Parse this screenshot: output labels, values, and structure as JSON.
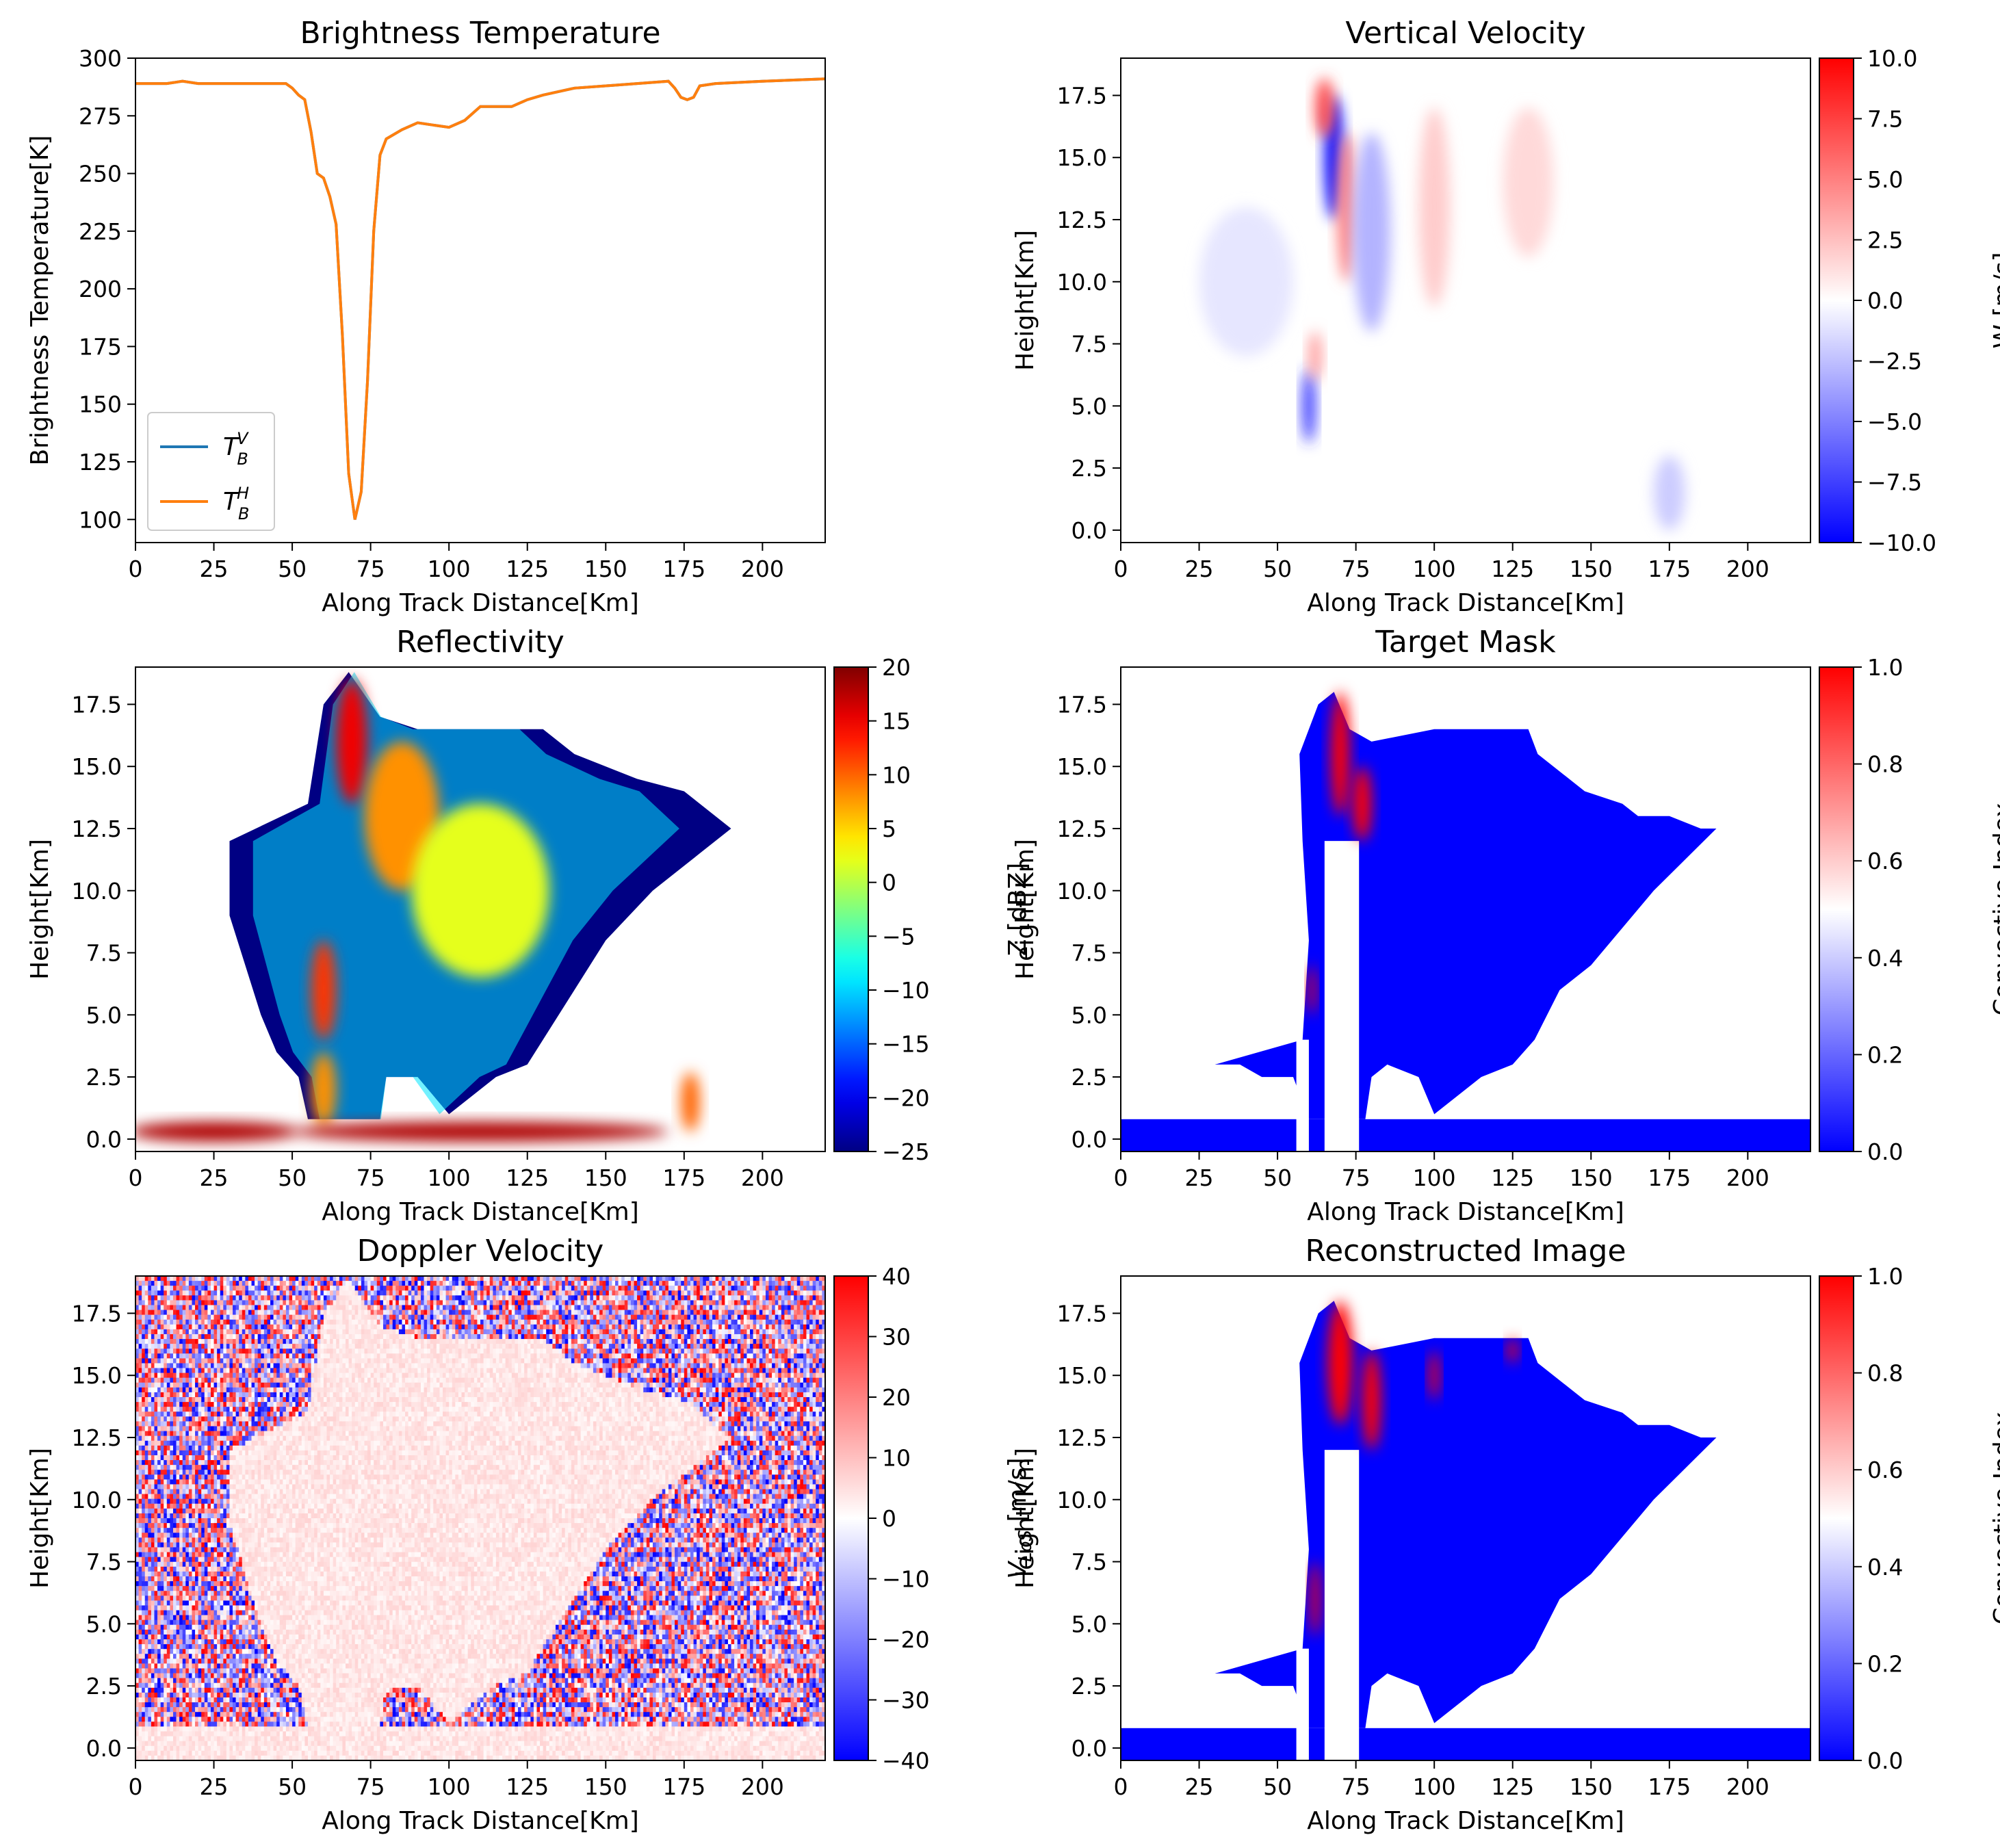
{
  "charts": [
    {
      "type": "line",
      "title": "Brightness Temperature",
      "xlabel": "Along Track Distance[Km]",
      "ylabel": "Brightness Temperature[K]",
      "xlim": [
        0,
        220
      ],
      "ylim": [
        90,
        300
      ],
      "xticks": [
        0,
        25,
        50,
        75,
        100,
        125,
        150,
        175,
        200
      ],
      "yticks": [
        100,
        125,
        150,
        175,
        200,
        225,
        250,
        275,
        300
      ],
      "legend": {
        "placement": "lower-left",
        "entries": [
          {
            "tex": "V",
            "color": "#1f77b4"
          },
          {
            "tex": "H",
            "color": "#ff7f0e"
          }
        ]
      },
      "series": [
        {
          "color": "#1f77b4",
          "x": [
            0,
            10,
            15,
            20,
            30,
            40,
            48,
            50,
            52,
            54,
            56,
            58,
            60,
            62,
            64,
            66,
            68,
            70,
            72,
            74,
            76,
            78,
            80,
            85,
            90,
            95,
            100,
            105,
            110,
            115,
            120,
            125,
            130,
            140,
            150,
            160,
            170,
            172,
            174,
            176,
            178,
            180,
            185,
            200,
            220
          ],
          "y": [
            289,
            289,
            290,
            289,
            289,
            289,
            289,
            287,
            284,
            282,
            268,
            250,
            248,
            240,
            228,
            180,
            120,
            100,
            112,
            160,
            225,
            258,
            265,
            269,
            272,
            271,
            270,
            273,
            279,
            279,
            279,
            282,
            284,
            287,
            288,
            289,
            290,
            287,
            283,
            282,
            283,
            288,
            289,
            290,
            291
          ]
        },
        {
          "color": "#ff7f0e",
          "x": [
            0,
            10,
            15,
            20,
            30,
            40,
            48,
            50,
            52,
            54,
            56,
            58,
            60,
            62,
            64,
            66,
            68,
            70,
            72,
            74,
            76,
            78,
            80,
            85,
            90,
            95,
            100,
            105,
            110,
            115,
            120,
            125,
            130,
            140,
            150,
            160,
            170,
            172,
            174,
            176,
            178,
            180,
            185,
            200,
            220
          ],
          "y": [
            289,
            289,
            290,
            289,
            289,
            289,
            289,
            287,
            284,
            282,
            268,
            250,
            248,
            240,
            228,
            180,
            120,
            100,
            112,
            160,
            225,
            258,
            265,
            269,
            272,
            271,
            270,
            273,
            279,
            279,
            279,
            282,
            284,
            287,
            288,
            289,
            290,
            287,
            283,
            282,
            283,
            288,
            289,
            290,
            291
          ]
        }
      ]
    },
    {
      "type": "heatmap",
      "title": "Vertical Velocity",
      "xlabel": "Along Track Distance[Km]",
      "ylabel": "Height[Km]",
      "colorbar_label": "W [m/s]",
      "colormap": "bwr",
      "xlim": [
        0,
        220
      ],
      "ylim": [
        -0.5,
        19
      ],
      "clim": [
        -10,
        10
      ],
      "xticks": [
        0,
        25,
        50,
        75,
        100,
        125,
        150,
        175,
        200
      ],
      "yticks": [
        0.0,
        2.5,
        5.0,
        7.5,
        10.0,
        12.5,
        15.0,
        17.5
      ],
      "cticks": [
        -10.0,
        -7.5,
        -5.0,
        -2.5,
        0.0,
        2.5,
        5.0,
        7.5,
        10.0
      ],
      "cticklabels": [
        "−10.0",
        "−7.5",
        "−5.0",
        "−2.5",
        "0.0",
        "2.5",
        "5.0",
        "7.5",
        "10.0"
      ],
      "features": [
        {
          "x": 68,
          "y": 15.0,
          "rx": 3,
          "ry": 2.5,
          "v": -10
        },
        {
          "x": 65,
          "y": 17.0,
          "rx": 3,
          "ry": 1.2,
          "v": 7
        },
        {
          "x": 72,
          "y": 13.0,
          "rx": 3,
          "ry": 3,
          "v": 5
        },
        {
          "x": 60,
          "y": 5.0,
          "rx": 2,
          "ry": 1.5,
          "v": -8
        },
        {
          "x": 62,
          "y": 7.0,
          "rx": 2,
          "ry": 1.0,
          "v": 4
        },
        {
          "x": 80,
          "y": 12.0,
          "rx": 6,
          "ry": 4,
          "v": -3
        },
        {
          "x": 100,
          "y": 13.0,
          "rx": 5,
          "ry": 4,
          "v": 2
        },
        {
          "x": 130,
          "y": 14.0,
          "rx": 8,
          "ry": 3,
          "v": 1.5
        },
        {
          "x": 40,
          "y": 10.0,
          "rx": 15,
          "ry": 3,
          "v": -1
        },
        {
          "x": 175,
          "y": 1.5,
          "rx": 5,
          "ry": 1.5,
          "v": -2
        }
      ]
    },
    {
      "type": "heatmap",
      "title": "Reflectivity",
      "xlabel": "Along Track Distance[Km]",
      "ylabel": "Height[Km]",
      "colorbar_label": "Z [dBZ]",
      "colormap": "jet",
      "xlim": [
        0,
        220
      ],
      "ylim": [
        -0.5,
        19
      ],
      "clim": [
        -25,
        20
      ],
      "xticks": [
        0,
        25,
        50,
        75,
        100,
        125,
        150,
        175,
        200
      ],
      "yticks": [
        0.0,
        2.5,
        5.0,
        7.5,
        10.0,
        12.5,
        15.0,
        17.5
      ],
      "cticks": [
        -25,
        -20,
        -15,
        -10,
        -5,
        0,
        5,
        10,
        15,
        20
      ],
      "cticklabels": [
        "−25",
        "−20",
        "−15",
        "−10",
        "−5",
        "0",
        "5",
        "10",
        "15",
        "20"
      ],
      "features": [
        {
          "x": 69,
          "y": 16.0,
          "rx": 5,
          "ry": 2.5,
          "v": 15
        },
        {
          "x": 85,
          "y": 13.0,
          "rx": 12,
          "ry": 3,
          "v": 8
        },
        {
          "x": 110,
          "y": 10.0,
          "rx": 22,
          "ry": 3.5,
          "v": 2
        },
        {
          "x": 60,
          "y": 6.0,
          "rx": 4,
          "ry": 2.0,
          "v": 12
        },
        {
          "x": 60,
          "y": 2.0,
          "rx": 4,
          "ry": 1.5,
          "v": 8
        },
        {
          "x": 177,
          "y": 1.5,
          "rx": 3,
          "ry": 1.2,
          "v": 10
        },
        {
          "x": 110,
          "y": 0.3,
          "rx": 60,
          "ry": 0.4,
          "v": 18
        },
        {
          "x": 25,
          "y": 0.3,
          "rx": 27,
          "ry": 0.4,
          "v": 18
        }
      ]
    },
    {
      "type": "heatmap",
      "title": "Target Mask",
      "xlabel": "Along Track Distance[Km]",
      "ylabel": "Height[Km]",
      "colorbar_label": "Convective Index",
      "colormap": "bwr",
      "xlim": [
        0,
        220
      ],
      "ylim": [
        -0.5,
        19
      ],
      "clim": [
        0,
        1
      ],
      "xticks": [
        0,
        25,
        50,
        75,
        100,
        125,
        150,
        175,
        200
      ],
      "yticks": [
        0.0,
        2.5,
        5.0,
        7.5,
        10.0,
        12.5,
        15.0,
        17.5
      ],
      "cticks": [
        0.0,
        0.2,
        0.4,
        0.6,
        0.8,
        1.0
      ],
      "cticklabels": [
        "0.0",
        "0.2",
        "0.4",
        "0.6",
        "0.8",
        "1.0"
      ],
      "features": [
        {
          "x": 70,
          "y": 15.5,
          "rx": 3,
          "ry": 2.5,
          "v": 1
        },
        {
          "x": 77,
          "y": 13.5,
          "rx": 3,
          "ry": 1.5,
          "v": 1
        },
        {
          "x": 61,
          "y": 6.0,
          "rx": 1.2,
          "ry": 1.0,
          "v": 1
        }
      ]
    },
    {
      "type": "heatmap",
      "title": "Doppler Velocity",
      "xlabel": "Along Track Distance[Km]",
      "ylabel": "V",
      "ylabel_sub": "LoS",
      "ylabel_unit": " [m/s]",
      "colorbar_label": "",
      "colormap": "bwr",
      "xlim": [
        0,
        220
      ],
      "ylim": [
        -0.5,
        19
      ],
      "clim": [
        -40,
        40
      ],
      "xticks": [
        0,
        25,
        50,
        75,
        100,
        125,
        150,
        175,
        200
      ],
      "yticks": [
        0.0,
        2.5,
        5.0,
        7.5,
        10.0,
        12.5,
        15.0,
        17.5
      ],
      "cticks": [
        -40,
        -30,
        -20,
        -10,
        0,
        10,
        20,
        30,
        40
      ],
      "cticklabels": [
        "−40",
        "−30",
        "−20",
        "−10",
        "0",
        "10",
        "20",
        "30",
        "40"
      ],
      "features": []
    },
    {
      "type": "heatmap",
      "title": "Reconstructed Image",
      "xlabel": "Along Track Distance[Km]",
      "ylabel": "Height[Km]",
      "colorbar_label": "Convective Index",
      "colormap": "bwr",
      "xlim": [
        0,
        220
      ],
      "ylim": [
        -0.5,
        19
      ],
      "clim": [
        0,
        1
      ],
      "xticks": [
        0,
        25,
        50,
        75,
        100,
        125,
        150,
        175,
        200
      ],
      "yticks": [
        0.0,
        2.5,
        5.0,
        7.5,
        10.0,
        12.5,
        15.0,
        17.5
      ],
      "cticks": [
        0.0,
        0.2,
        0.4,
        0.6,
        0.8,
        1.0
      ],
      "cticklabels": [
        "0.0",
        "0.2",
        "0.4",
        "0.6",
        "0.8",
        "1.0"
      ],
      "features": [
        {
          "x": 70,
          "y": 15.5,
          "rx": 4,
          "ry": 2.5,
          "v": 1
        },
        {
          "x": 80,
          "y": 14.0,
          "rx": 3,
          "ry": 2.0,
          "v": 1
        },
        {
          "x": 100,
          "y": 15.0,
          "rx": 1.5,
          "ry": 1.0,
          "v": 1
        },
        {
          "x": 125,
          "y": 16.0,
          "rx": 1.5,
          "ry": 0.5,
          "v": 1
        },
        {
          "x": 62,
          "y": 6.0,
          "rx": 1.5,
          "ry": 1.5,
          "v": 1
        }
      ]
    }
  ],
  "storm_shape": {
    "cloud": [
      [
        30,
        12
      ],
      [
        55,
        13.5
      ],
      [
        60,
        17.5
      ],
      [
        68,
        18.8
      ],
      [
        78,
        17
      ],
      [
        90,
        16.5
      ],
      [
        110,
        16.5
      ],
      [
        130,
        16.5
      ],
      [
        140,
        15.5
      ],
      [
        160,
        14.5
      ],
      [
        175,
        14
      ],
      [
        190,
        12.5
      ],
      [
        180,
        11.5
      ],
      [
        165,
        10
      ],
      [
        150,
        8
      ],
      [
        140,
        6
      ],
      [
        125,
        3
      ],
      [
        115,
        2.5
      ],
      [
        100,
        1
      ],
      [
        90,
        2.5
      ],
      [
        80,
        2.5
      ],
      [
        78,
        0.8
      ],
      [
        55,
        0.8
      ],
      [
        52,
        2.5
      ],
      [
        45,
        3.5
      ],
      [
        40,
        5
      ],
      [
        30,
        9
      ]
    ],
    "mask_outline": [
      [
        58,
        4
      ],
      [
        60,
        8
      ],
      [
        58,
        12
      ],
      [
        57,
        15.5
      ],
      [
        63,
        17.5
      ],
      [
        68,
        18
      ],
      [
        73,
        16.5
      ],
      [
        80,
        16
      ],
      [
        100,
        16.5
      ],
      [
        130,
        16.5
      ],
      [
        133,
        15.5
      ],
      [
        148,
        14.0
      ],
      [
        160,
        13.5
      ],
      [
        165,
        13
      ],
      [
        175,
        13
      ],
      [
        185,
        12.5
      ],
      [
        190,
        12.5
      ],
      [
        182,
        11.5
      ],
      [
        170,
        10
      ],
      [
        160,
        8.5
      ],
      [
        150,
        7
      ],
      [
        140,
        6
      ],
      [
        132,
        4
      ],
      [
        125,
        3
      ],
      [
        115,
        2.5
      ],
      [
        105,
        1.5
      ],
      [
        100,
        1
      ],
      [
        95,
        2.5
      ],
      [
        85,
        3.0
      ],
      [
        80,
        2.5
      ],
      [
        78,
        0.8
      ],
      [
        60,
        0.8
      ],
      [
        55,
        2.5
      ],
      [
        45,
        2.5
      ],
      [
        38,
        3
      ],
      [
        30,
        3
      ]
    ]
  }
}
